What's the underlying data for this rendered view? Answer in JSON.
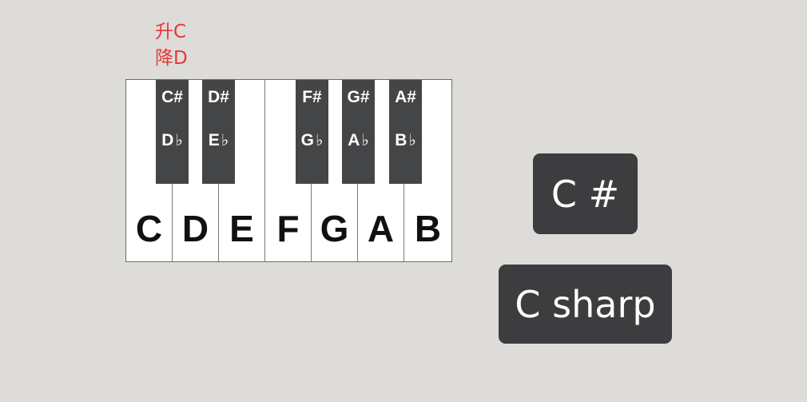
{
  "annotation": {
    "line1": "升C",
    "line2": "降D"
  },
  "keyboard": {
    "white_keys": [
      "C",
      "D",
      "E",
      "F",
      "G",
      "A",
      "B"
    ],
    "black_keys": [
      {
        "sharp": "C#",
        "flat_letter": "D",
        "flat_symbol": "♭"
      },
      {
        "sharp": "D#",
        "flat_letter": "E",
        "flat_symbol": "♭"
      },
      {
        "sharp": "F#",
        "flat_letter": "G",
        "flat_symbol": "♭"
      },
      {
        "sharp": "G#",
        "flat_letter": "A",
        "flat_symbol": "♭"
      },
      {
        "sharp": "A#",
        "flat_letter": "B",
        "flat_symbol": "♭"
      }
    ]
  },
  "chips": {
    "symbol": "C #",
    "name": "C sharp"
  },
  "colors": {
    "background": "#dddcd8",
    "annotation": "#e8363c",
    "black_key": "#444547",
    "chip": "#3d3c3e"
  }
}
